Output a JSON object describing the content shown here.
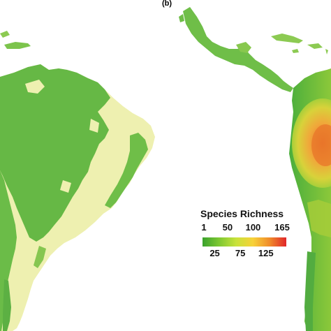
{
  "panel_label": "(b)",
  "legend": {
    "title": "Species Richness",
    "min": 1,
    "max": 165,
    "ticks_top": [
      "1",
      "50",
      "100",
      "165"
    ],
    "ticks_top_values": [
      1,
      50,
      100,
      165
    ],
    "ticks_bottom": [
      "25",
      "75",
      "125"
    ],
    "ticks_bottom_values": [
      25,
      75,
      125
    ],
    "gradient_colors": [
      "#3aa22d",
      "#7ec832",
      "#c8e23c",
      "#f7d23a",
      "#f08c2a",
      "#e0262a"
    ]
  },
  "map_colors": {
    "low_green": "#5db84a",
    "pale_yellow": "#eef0b0",
    "mid_yellow_green": "#b6d43a",
    "orange": "#f0a43a",
    "red_orange": "#e86a2a"
  }
}
